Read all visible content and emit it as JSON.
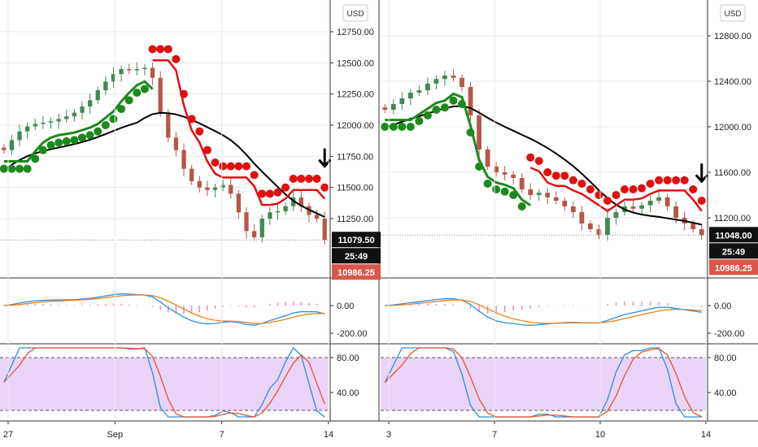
{
  "colors": {
    "up": "#3f8a52",
    "down": "#b5564a",
    "support": "#1b8a1b",
    "resistance": "#e01010",
    "ma": "#000000",
    "macd": "#2a8fe0",
    "signal": "#f07f1a",
    "hist": "#e88db5",
    "stoch_k": "#2a8fe0",
    "stoch_d": "#f0502a",
    "stoch_band": "#e3c6f5",
    "last_dark": "#111111",
    "last_red": "#d9574a",
    "grid": "#ebebeb"
  },
  "chart_data": [
    {
      "type": "line",
      "panel": "left",
      "unit_label": "USD",
      "price_axis": {
        "ticks": [
          "12750.00",
          "12500.00",
          "12250.00",
          "12000.00",
          "11750.00",
          "11500.00",
          "11250.00"
        ],
        "ylim": [
          10800,
          12900
        ]
      },
      "x_ticks": [
        "27",
        "Sep",
        "7",
        "14"
      ],
      "price_labels": {
        "last": "11079.50",
        "countdown": "25:49",
        "other": "10986.25"
      },
      "series": [
        {
          "name": "",
          "values": [
            11800,
            11880,
            11950,
            11990,
            12010,
            12020,
            12030,
            12050,
            12070,
            12100,
            12150,
            12200,
            12280,
            12350,
            12410,
            12450,
            12440,
            12450,
            12460,
            12380,
            12100,
            11900,
            11800,
            11650,
            11550,
            11500,
            11480,
            11500,
            11520,
            11450,
            11300,
            11150,
            11100,
            11250,
            11300,
            11310,
            11350,
            11420,
            11350,
            11280,
            11250,
            11079
          ]
        }
      ],
      "macd": {
        "ticks": [
          "0.00",
          "-200.00"
        ]
      },
      "stoch": {
        "ticks": [
          "80.00",
          "40.00"
        ]
      }
    },
    {
      "type": "line",
      "panel": "right",
      "unit_label": "USD",
      "price_axis": {
        "ticks": [
          "12800.00",
          "12400.00",
          "12000.00",
          "11600.00",
          "11200.00"
        ],
        "ylim": [
          10700,
          13000
        ]
      },
      "x_ticks": [
        "3",
        "7",
        "10",
        "14"
      ],
      "price_labels": {
        "last": "11048.00",
        "countdown": "25:49",
        "other": "10986.25"
      },
      "series": [
        {
          "name": "",
          "values": [
            12150,
            12200,
            12250,
            12300,
            12320,
            12380,
            12420,
            12450,
            12430,
            12350,
            12100,
            11800,
            11650,
            11600,
            11580,
            11550,
            11450,
            11400,
            11420,
            11380,
            11350,
            11300,
            11250,
            11150,
            11100,
            11050,
            11200,
            11250,
            11300,
            11280,
            11310,
            11350,
            11380,
            11300,
            11200,
            11150,
            11100,
            11048
          ]
        }
      ],
      "macd": {
        "ticks": [
          "0.00",
          "-200.00"
        ]
      },
      "stoch": {
        "ticks": [
          "80.00",
          "40.00"
        ]
      }
    }
  ]
}
